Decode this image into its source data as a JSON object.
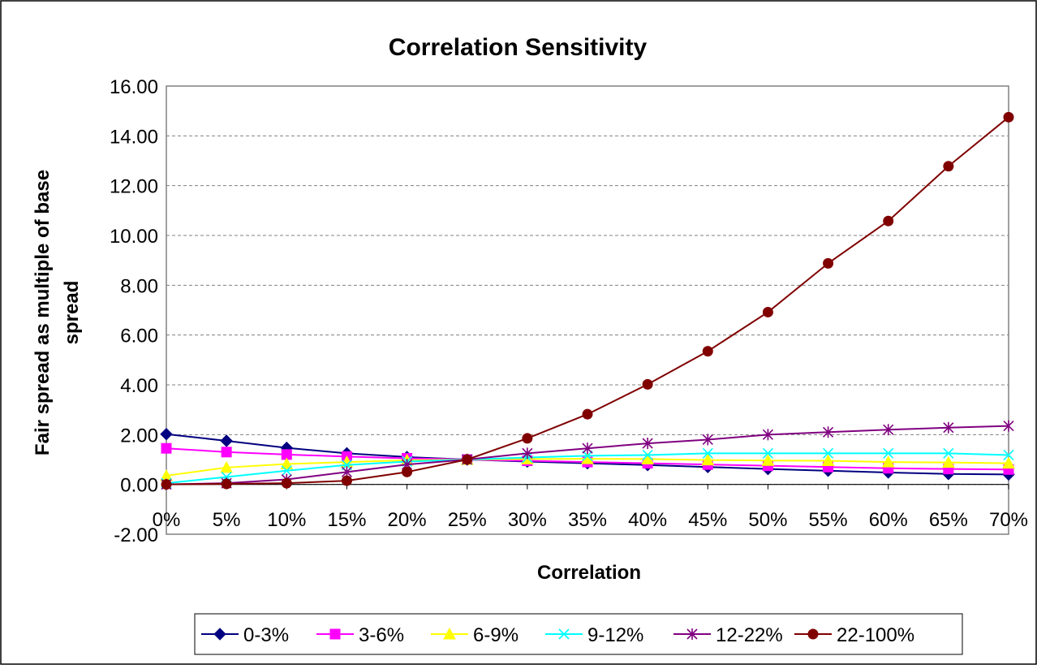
{
  "chart_data": {
    "type": "line",
    "title": "Correlation Sensitivity",
    "xlabel": "Correlation",
    "ylabel_lines": [
      "Fair spread as multiple of base",
      "spread"
    ],
    "categories": [
      "0%",
      "5%",
      "10%",
      "15%",
      "20%",
      "25%",
      "30%",
      "35%",
      "40%",
      "45%",
      "50%",
      "55%",
      "60%",
      "65%",
      "70%"
    ],
    "ylim": [
      -2,
      16
    ],
    "yticks": [
      -2,
      0,
      2,
      4,
      6,
      8,
      10,
      12,
      14,
      16
    ],
    "ytick_labels": [
      "-2.00",
      "0.00",
      "2.00",
      "4.00",
      "6.00",
      "8.00",
      "10.00",
      "12.00",
      "14.00",
      "16.00"
    ],
    "grid": "horizontal dashed",
    "legend": "bottom",
    "series": [
      {
        "name": "0-3%",
        "color": "#000080",
        "marker": "diamond",
        "values": [
          2.02,
          1.75,
          1.47,
          1.25,
          1.1,
          1.0,
          0.92,
          0.85,
          0.78,
          0.7,
          0.62,
          0.55,
          0.48,
          0.42,
          0.4
        ]
      },
      {
        "name": "3-6%",
        "color": "#ff00ff",
        "marker": "square",
        "values": [
          1.45,
          1.3,
          1.2,
          1.12,
          1.05,
          1.0,
          0.95,
          0.9,
          0.85,
          0.8,
          0.75,
          0.7,
          0.65,
          0.62,
          0.6
        ]
      },
      {
        "name": "6-9%",
        "color": "#ffff00",
        "marker": "triangle",
        "values": [
          0.35,
          0.68,
          0.82,
          0.9,
          0.97,
          1.0,
          1.02,
          1.03,
          1.02,
          0.98,
          0.96,
          0.95,
          0.9,
          0.88,
          0.85
        ]
      },
      {
        "name": "9-12%",
        "color": "#00ffff",
        "marker": "x",
        "values": [
          0.05,
          0.3,
          0.55,
          0.78,
          0.92,
          1.0,
          1.08,
          1.15,
          1.18,
          1.25,
          1.25,
          1.25,
          1.25,
          1.25,
          1.18
        ]
      },
      {
        "name": "12-22%",
        "color": "#800080",
        "marker": "star",
        "values": [
          0.0,
          0.05,
          0.2,
          0.5,
          0.8,
          1.0,
          1.25,
          1.45,
          1.65,
          1.8,
          2.0,
          2.1,
          2.2,
          2.28,
          2.35
        ]
      },
      {
        "name": "22-100%",
        "color": "#800000",
        "marker": "circle",
        "values": [
          0.0,
          0.02,
          0.05,
          0.15,
          0.5,
          1.0,
          1.85,
          2.82,
          4.02,
          5.35,
          6.92,
          8.88,
          10.58,
          12.78,
          14.75
        ]
      }
    ]
  }
}
